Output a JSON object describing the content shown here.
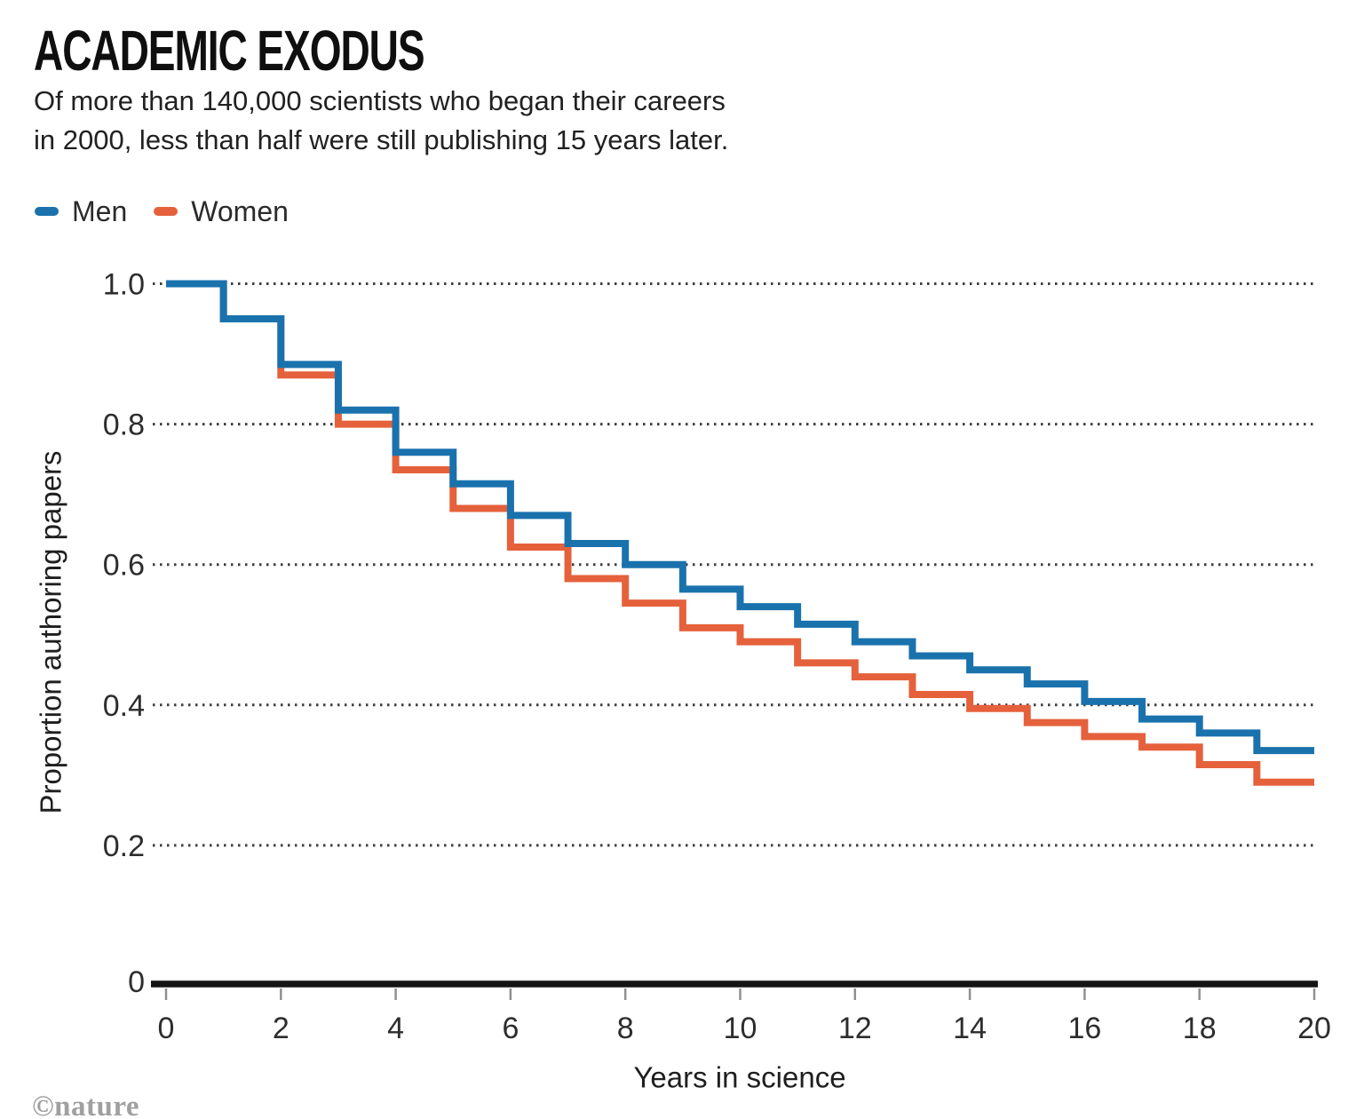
{
  "chart_data": {
    "type": "line",
    "step": "post",
    "title": "ACADEMIC EXODUS",
    "subtitle_line1": "Of more than 140,000 scientists who began their careers",
    "subtitle_line2": "in 2000, less than half were still publishing 15 years later.",
    "xlabel": "Years in science",
    "ylabel": "Proportion authoring papers",
    "xlim": [
      0,
      20
    ],
    "ylim": [
      0,
      1.0
    ],
    "xticks": [
      0,
      2,
      4,
      6,
      8,
      10,
      12,
      14,
      16,
      18,
      20
    ],
    "yticks": [
      0,
      0.2,
      0.4,
      0.6,
      0.8,
      1.0
    ],
    "ytick_labels": [
      "0",
      "0.2",
      "0.4",
      "0.6",
      "0.8",
      "1.0"
    ],
    "grid": "horizontal-dotted",
    "legend_position": "top-left",
    "interval_note": "values[i] is the proportion during year interval [i, i+1)",
    "years": [
      0,
      1,
      2,
      3,
      4,
      5,
      6,
      7,
      8,
      9,
      10,
      11,
      12,
      13,
      14,
      15,
      16,
      17,
      18,
      19
    ],
    "series": [
      {
        "name": "Men",
        "color": "#1a72ad",
        "values": [
          1.0,
          0.95,
          0.885,
          0.82,
          0.76,
          0.715,
          0.67,
          0.63,
          0.6,
          0.565,
          0.54,
          0.515,
          0.49,
          0.47,
          0.45,
          0.43,
          0.405,
          0.38,
          0.36,
          0.335
        ]
      },
      {
        "name": "Women",
        "color": "#e5613c",
        "values": [
          1.0,
          0.95,
          0.87,
          0.8,
          0.735,
          0.68,
          0.625,
          0.58,
          0.545,
          0.51,
          0.49,
          0.46,
          0.44,
          0.415,
          0.395,
          0.375,
          0.355,
          0.34,
          0.315,
          0.29
        ]
      }
    ]
  },
  "footer": {
    "credit": "©nature"
  }
}
